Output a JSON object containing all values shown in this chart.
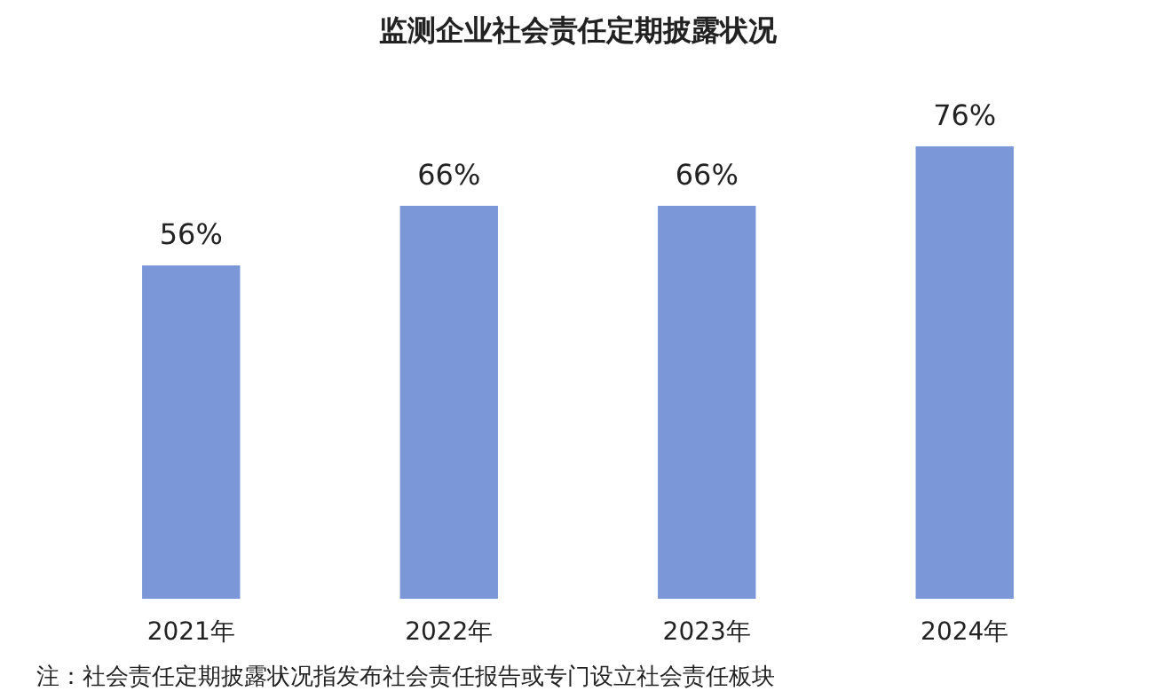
{
  "chart_data": {
    "type": "bar",
    "title": "监测企业社会责任定期披露状况",
    "categories": [
      "2021年",
      "2022年",
      "2023年",
      "2024年"
    ],
    "values": [
      56,
      66,
      66,
      76
    ],
    "value_labels": [
      "56%",
      "66%",
      "66%",
      "76%"
    ],
    "color": "#7b97d8",
    "grid": false,
    "annotations": [
      "注：社会责任定期披露状况指发布社会责任报告或专门设立社会责任板块"
    ]
  }
}
